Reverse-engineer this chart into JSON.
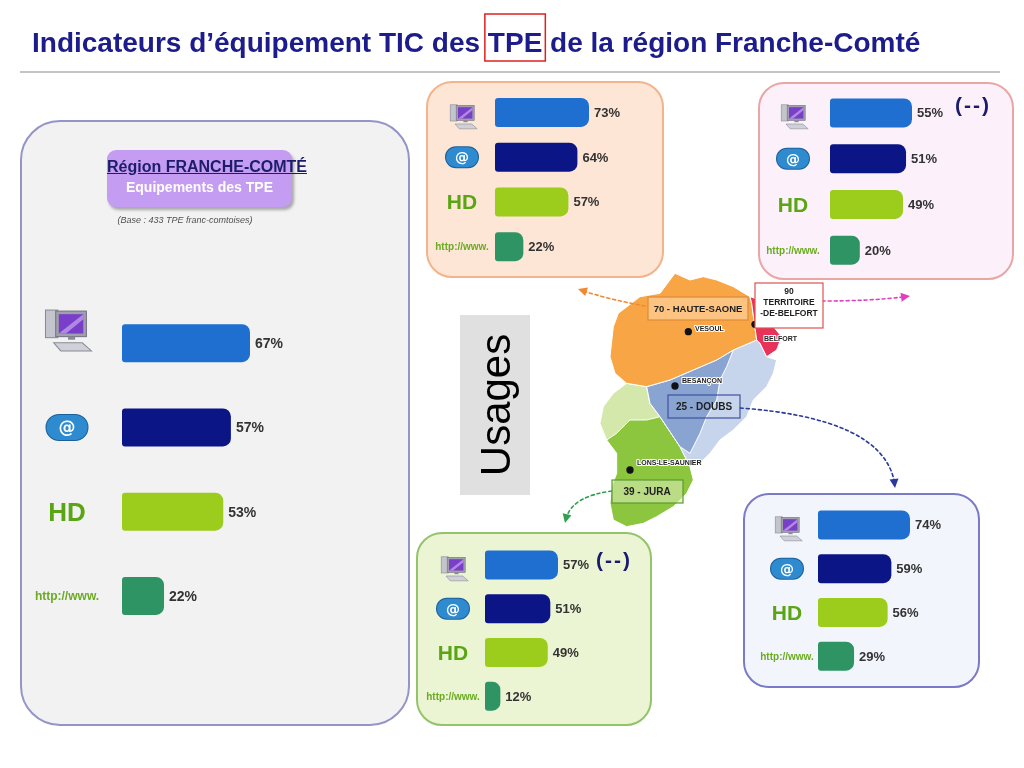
{
  "chart_data": [
    {
      "type": "other",
      "title": "Indicateurs d’équipement TIC des TPE de la région Franche-Comté",
      "annotations": [
        "Usages",
        "70 - HAUTE-SAONE",
        "VESOUL",
        "90\nTERRITOIRE\n-DE-BELFORT",
        "BELFORT",
        "BESANÇON",
        "25 - DOUBS",
        "LONS-LE-SAUNIER",
        "39 - JURA"
      ]
    },
    {
      "type": "bar",
      "orientation": "horizontal",
      "title": "Région FRANCHE-COMTÉ",
      "subtitle": "Equipements des TPE",
      "annotations": [
        "(Base : 433 TPE franc-comtoises)"
      ],
      "categories": [
        null,
        "@",
        "HD",
        "http://www."
      ],
      "values": [
        67,
        57,
        53,
        22
      ],
      "colors": [
        "#1f6fd0",
        "#0b1585",
        "#9ccc1c",
        "#2e9464"
      ],
      "value_labels": [
        "67%",
        "57%",
        "53%",
        "22%"
      ],
      "tick_labels": "y"
    },
    {
      "type": "bar",
      "orientation": "horizontal",
      "categories": [
        null,
        "@",
        "HD",
        "http://www."
      ],
      "values": [
        73,
        64,
        57,
        22
      ],
      "colors": [
        "#1f6fd0",
        "#0b1585",
        "#9ccc1c",
        "#2e9464"
      ],
      "value_labels": [
        "73%",
        "64%",
        "57%",
        "22%"
      ],
      "tick_labels": "y"
    },
    {
      "type": "bar",
      "orientation": "horizontal",
      "annotations": [
        "(--)"
      ],
      "categories": [
        null,
        "@",
        "HD",
        "http://www."
      ],
      "values": [
        55,
        51,
        49,
        20
      ],
      "colors": [
        "#1f6fd0",
        "#0b1585",
        "#9ccc1c",
        "#2e9464"
      ],
      "value_labels": [
        "55%",
        "51%",
        "49%",
        "20%"
      ],
      "tick_labels": "y"
    },
    {
      "type": "bar",
      "orientation": "horizontal",
      "annotations": [
        "(--)"
      ],
      "categories": [
        null,
        "@",
        "HD",
        "http://www."
      ],
      "values": [
        57,
        51,
        49,
        12
      ],
      "colors": [
        "#1f6fd0",
        "#0b1585",
        "#9ccc1c",
        "#2e9464"
      ],
      "value_labels": [
        "57%",
        "51%",
        "49%",
        "12%"
      ],
      "tick_labels": "y"
    },
    {
      "type": "bar",
      "orientation": "horizontal",
      "categories": [
        null,
        "@",
        "HD",
        "http://www."
      ],
      "values": [
        74,
        59,
        56,
        29
      ],
      "colors": [
        "#1f6fd0",
        "#0b1585",
        "#9ccc1c",
        "#2e9464"
      ],
      "value_labels": [
        "74%",
        "59%",
        "56%",
        "29%"
      ],
      "tick_labels": "y"
    }
  ]
}
